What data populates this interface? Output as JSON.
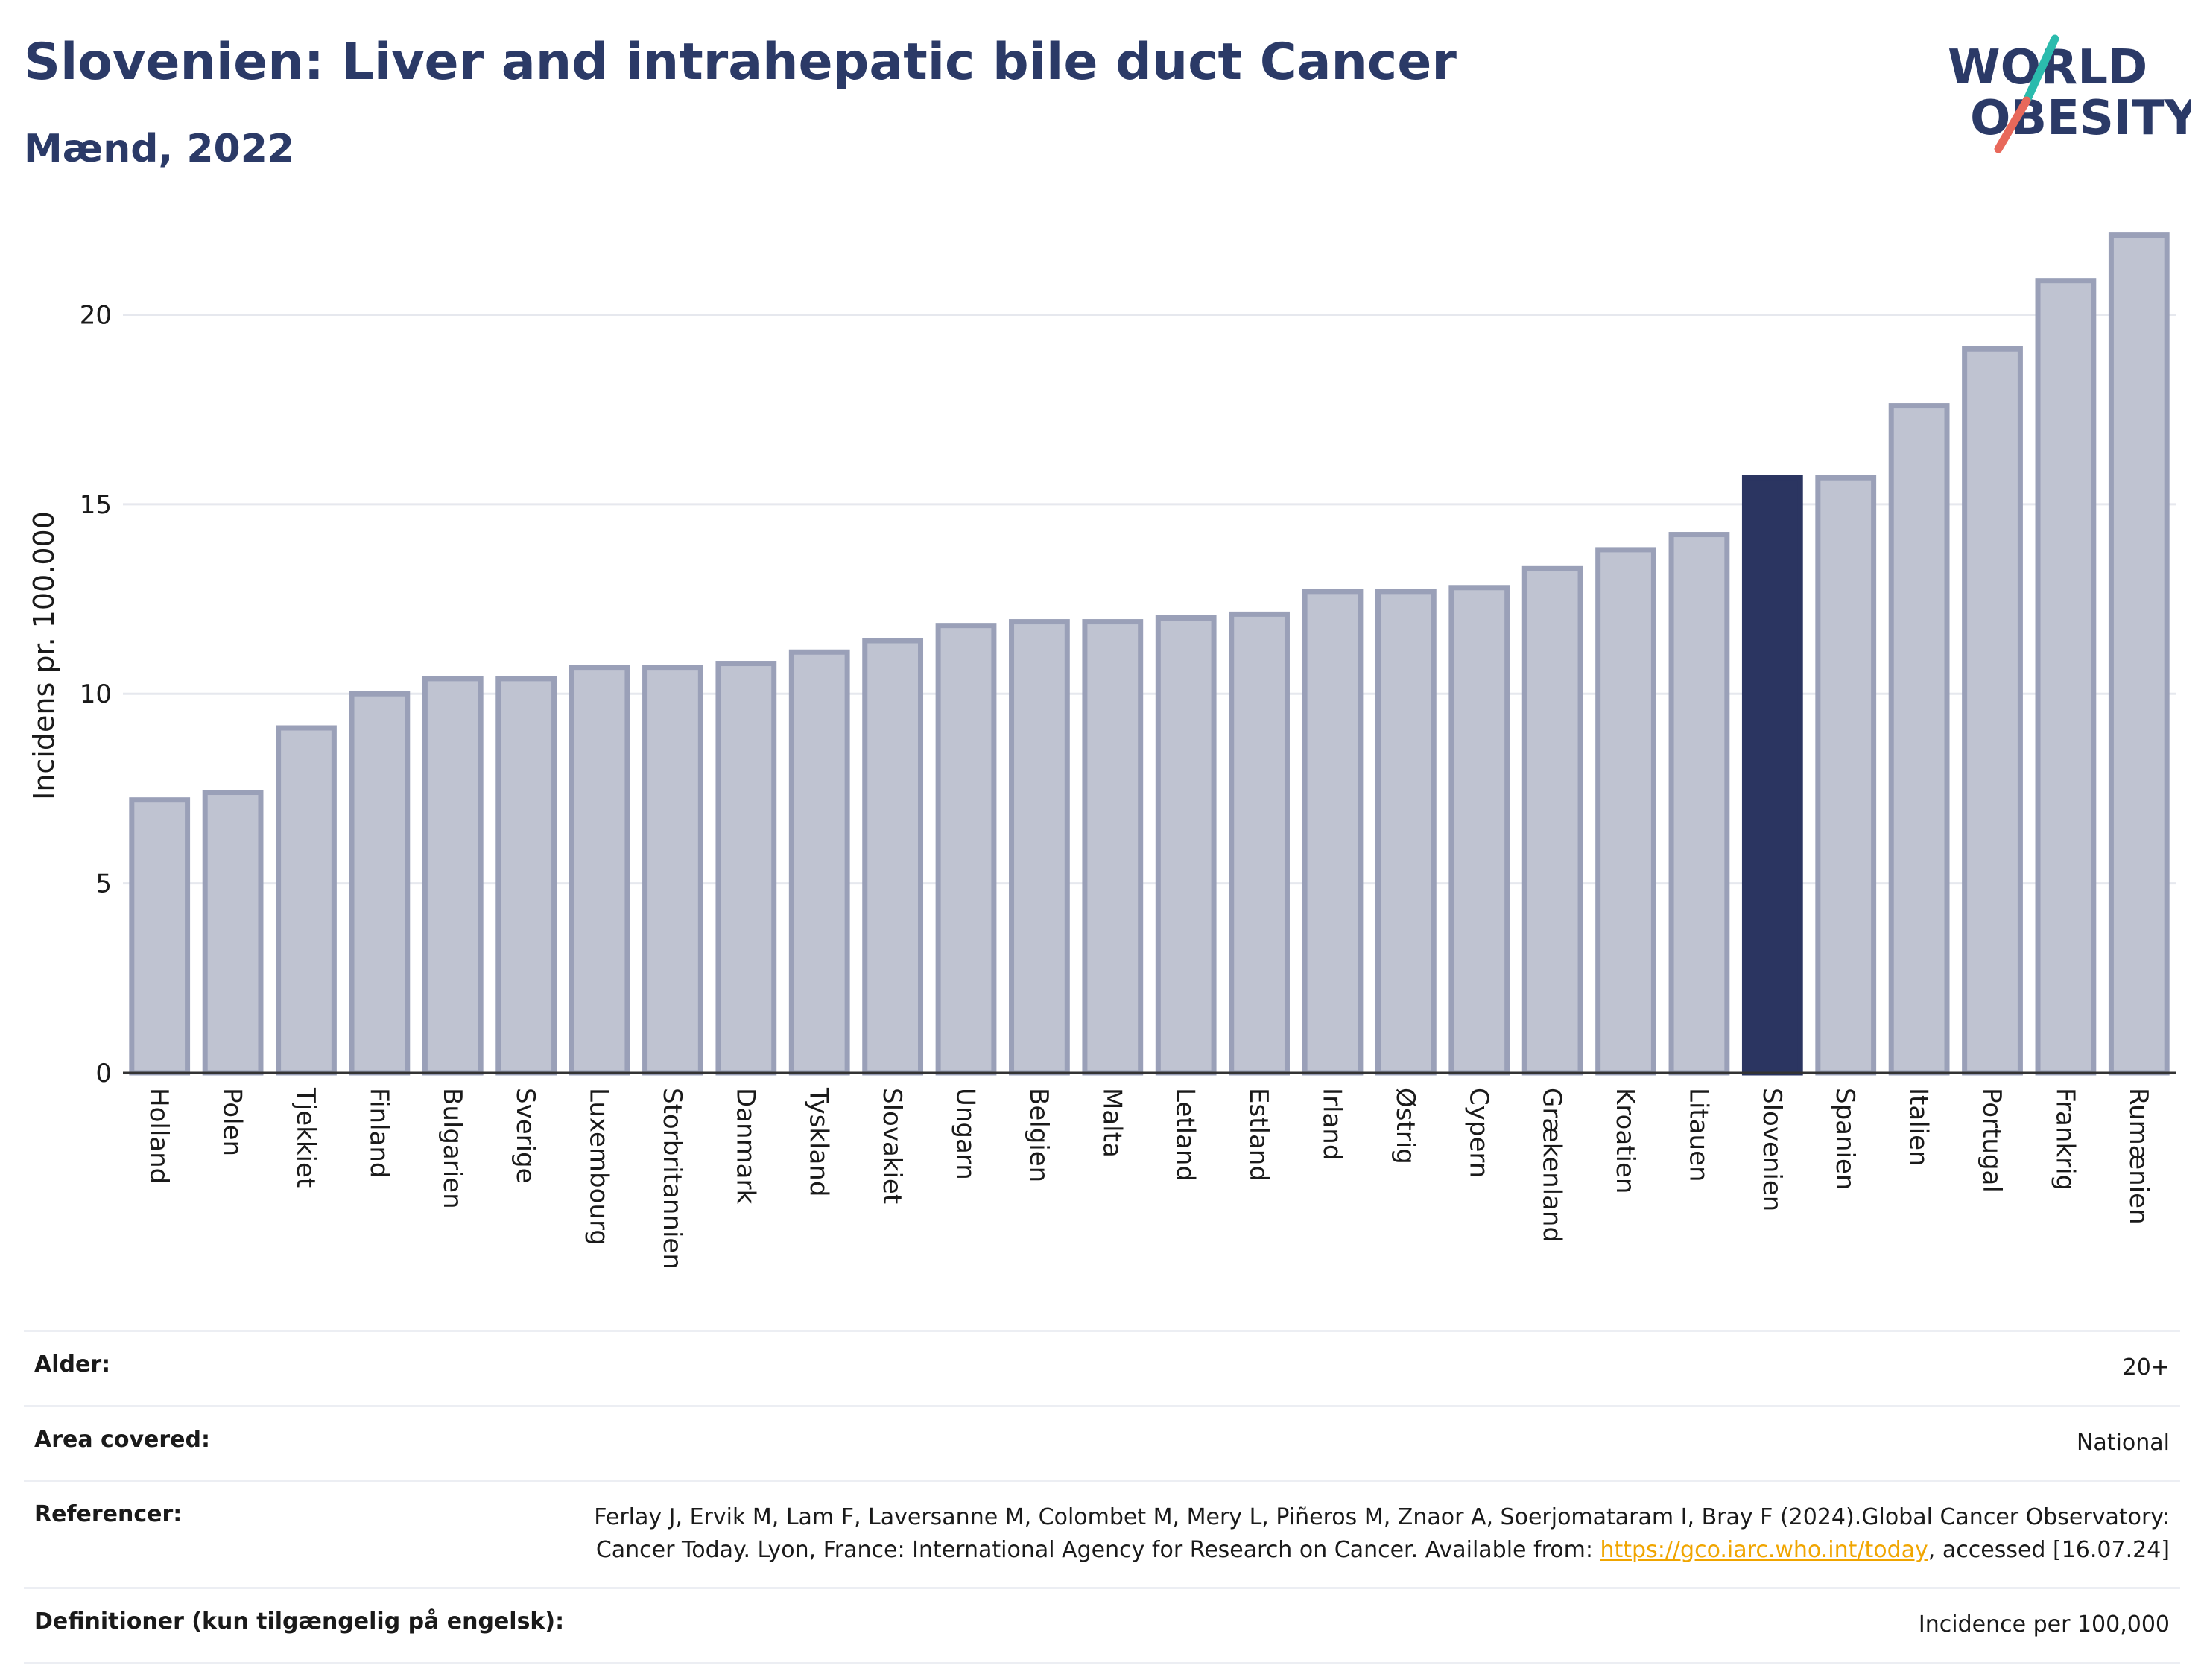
{
  "header": {
    "title": "Slovenien: Liver and intrahepatic bile duct Cancer",
    "subtitle": "Mænd, 2022"
  },
  "logo": {
    "line1": "WORLD",
    "line2": "OBESITY",
    "accent_teal": "#2bbbad",
    "accent_coral": "#e8685a",
    "text_color": "#2b3a67"
  },
  "colors": {
    "bar": "#bfc3d1",
    "bar_border": "#9aa0b8",
    "highlight": "#2b3561",
    "grid": "#e6e8ee",
    "axis": "#333333"
  },
  "chart_data": {
    "type": "bar",
    "ylabel": "Incidens pr. 100.000",
    "xlabel": "",
    "ylim": [
      0,
      22.8
    ],
    "yticks": [
      0,
      5,
      10,
      15,
      20
    ],
    "grid": true,
    "highlight_category": "Slovenien",
    "categories": [
      "Holland",
      "Polen",
      "Tjekkiet",
      "Finland",
      "Bulgarien",
      "Sverige",
      "Luxembourg",
      "Storbritannien",
      "Danmark",
      "Tyskland",
      "Slovakiet",
      "Ungarn",
      "Belgien",
      "Malta",
      "Letland",
      "Estland",
      "Irland",
      "Østrig",
      "Cypern",
      "Grækenland",
      "Kroatien",
      "Litauen",
      "Slovenien",
      "Spanien",
      "Italien",
      "Portugal",
      "Frankrig",
      "Rumænien"
    ],
    "values": [
      7.2,
      7.4,
      9.1,
      10.0,
      10.4,
      10.4,
      10.7,
      10.7,
      10.8,
      11.1,
      11.4,
      11.8,
      11.9,
      11.9,
      12.0,
      12.1,
      12.7,
      12.7,
      12.8,
      13.3,
      13.8,
      14.2,
      15.7,
      15.7,
      17.6,
      19.1,
      20.9,
      22.1
    ]
  },
  "meta": {
    "age_label": "Alder:",
    "age_value": "20+",
    "area_label": "Area covered:",
    "area_value": "National",
    "ref_label": "Referencer:",
    "ref_text_1": "Ferlay J, Ervik M, Lam F, Laversanne M, Colombet M, Mery L, Piñeros M, Znaor A, Soerjomataram I, Bray F (2024).Global Cancer Observatory: Cancer Today. Lyon, France: International Agency for Research on Cancer. Available from: ",
    "ref_link": "https://gco.iarc.who.int/today",
    "ref_text_2": ", accessed [16.07.24]",
    "def_label": "Definitioner (kun tilgængelig på engelsk):",
    "def_value": "Incidence per 100,000"
  }
}
